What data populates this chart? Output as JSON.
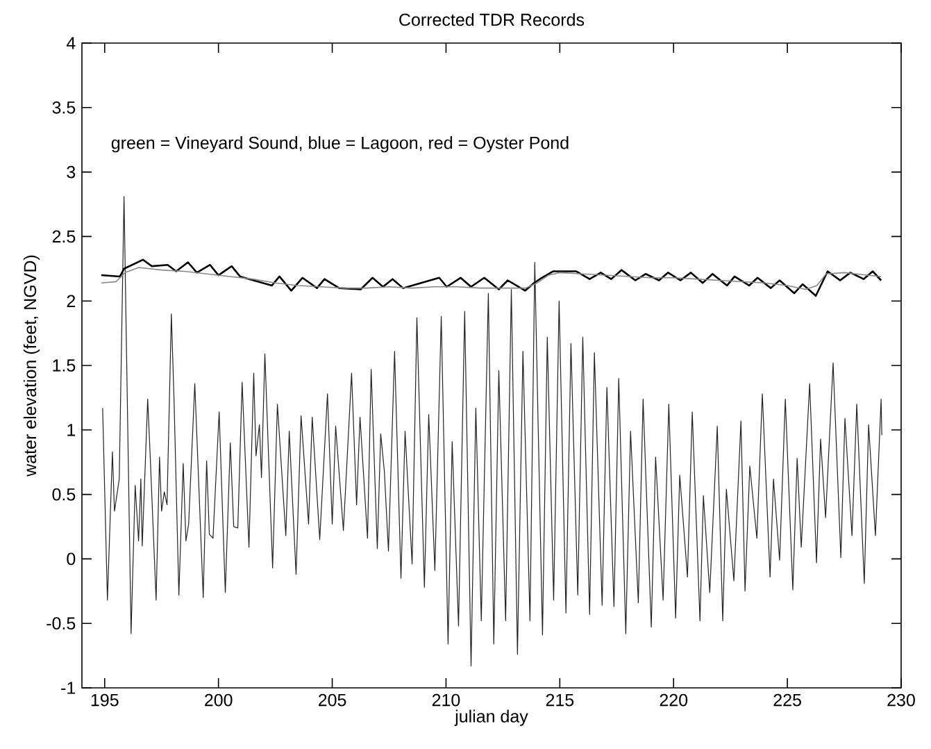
{
  "chart_data": {
    "type": "line",
    "title": "Corrected TDR Records",
    "xlabel": "julian day",
    "ylabel": "water elevation (feet, NGVD)",
    "annotations": [
      "green = Vineyard Sound, blue = Lagoon, red = Oyster Pond"
    ],
    "xlim": [
      194,
      230
    ],
    "xticks": [
      195,
      200,
      205,
      210,
      215,
      220,
      225,
      230
    ],
    "ylim": [
      -1,
      4
    ],
    "yticks": [
      -1,
      -0.5,
      0,
      0.5,
      1,
      1.5,
      2,
      2.5,
      3,
      3.5,
      4
    ],
    "grid": false,
    "marker": "none",
    "line_style": "solid",
    "series": [
      {
        "color": "#222222",
        "x": [
          194.91,
          195.12,
          195.34,
          195.43,
          195.64,
          195.85,
          196.16,
          196.34,
          196.49,
          196.59,
          196.65,
          196.89,
          197.0,
          197.26,
          197.41,
          197.5,
          197.62,
          197.74,
          197.93,
          198.05,
          198.26,
          198.45,
          198.57,
          198.69,
          198.96,
          199.33,
          199.48,
          199.6,
          199.76,
          200.03,
          200.3,
          200.52,
          200.67,
          200.85,
          201.04,
          201.34,
          201.55,
          201.65,
          201.8,
          201.89,
          202.04,
          202.38,
          202.59,
          202.96,
          203.11,
          203.41,
          203.63,
          203.96,
          204.12,
          204.45,
          204.79,
          205.0,
          205.15,
          205.49,
          205.85,
          206.07,
          206.22,
          206.55,
          206.71,
          206.98,
          207.13,
          207.29,
          207.47,
          207.74,
          208.02,
          208.2,
          208.51,
          208.72,
          209.05,
          209.24,
          209.51,
          209.79,
          210.09,
          210.27,
          210.55,
          210.82,
          211.1,
          211.31,
          211.55,
          211.86,
          212.1,
          212.32,
          212.62,
          212.87,
          213.14,
          213.38,
          213.69,
          213.9,
          214.24,
          214.45,
          214.73,
          214.97,
          215.27,
          215.49,
          215.79,
          216.01,
          216.31,
          216.52,
          216.86,
          217.07,
          217.38,
          217.59,
          217.9,
          218.11,
          218.45,
          218.66,
          219.02,
          219.21,
          219.54,
          219.79,
          220.09,
          220.27,
          220.61,
          220.82,
          221.16,
          221.31,
          221.59,
          221.92,
          222.16,
          222.32,
          222.65,
          222.96,
          223.14,
          223.35,
          223.66,
          223.9,
          224.24,
          224.39,
          224.66,
          224.91,
          225.24,
          225.43,
          225.61,
          225.98,
          226.28,
          226.46,
          226.68,
          227.01,
          227.35,
          227.53,
          227.84,
          228.05,
          228.38,
          228.57,
          228.87,
          229.12,
          229.15
        ],
        "values": [
          1.17,
          -0.32,
          0.83,
          0.37,
          0.62,
          2.81,
          -0.58,
          0.57,
          0.14,
          0.62,
          0.1,
          1.24,
          0.8,
          -0.32,
          0.79,
          0.37,
          0.52,
          0.42,
          1.9,
          1.22,
          -0.28,
          0.74,
          0.14,
          0.27,
          1.36,
          -0.3,
          0.76,
          0.19,
          0.16,
          1.14,
          -0.26,
          0.9,
          0.25,
          0.24,
          1.37,
          0.09,
          1.44,
          0.8,
          1.04,
          0.63,
          1.59,
          -0.07,
          1.2,
          0.18,
          0.99,
          -0.12,
          1.11,
          0.27,
          1.1,
          0.15,
          1.28,
          0.27,
          1.03,
          0.22,
          1.44,
          0.42,
          1.1,
          0.16,
          1.47,
          0.08,
          0.97,
          0.68,
          0.06,
          1.61,
          -0.15,
          0.99,
          -0.04,
          1.87,
          -0.22,
          1.12,
          -0.09,
          1.88,
          -0.66,
          0.91,
          -0.52,
          1.92,
          -0.83,
          1.17,
          -0.48,
          2.06,
          -0.66,
          1.46,
          -0.48,
          2.09,
          -0.74,
          1.61,
          -0.48,
          2.3,
          -0.59,
          1.72,
          -0.32,
          2.0,
          -0.42,
          1.67,
          -0.28,
          1.72,
          -0.43,
          1.6,
          -0.36,
          1.33,
          -0.37,
          1.4,
          -0.58,
          0.99,
          -0.34,
          1.24,
          -0.53,
          0.79,
          -0.32,
          1.2,
          -0.46,
          0.65,
          -0.14,
          1.14,
          -0.48,
          0.49,
          -0.26,
          1.03,
          -0.48,
          0.54,
          -0.17,
          1.07,
          -0.25,
          0.72,
          0.16,
          1.28,
          -0.14,
          0.62,
          -0.01,
          1.24,
          -0.24,
          0.78,
          0.09,
          1.36,
          -0.03,
          0.93,
          0.32,
          1.52,
          0.01,
          1.09,
          0.18,
          1.2,
          -0.19,
          1.04,
          0.18,
          1.24,
          0.96
        ]
      },
      {
        "color": "#000000",
        "x": [
          194.85,
          195.67,
          195.85,
          196.68,
          197.07,
          197.77,
          198.14,
          198.66,
          199.05,
          199.63,
          200.0,
          200.58,
          200.95,
          202.35,
          202.68,
          203.2,
          203.69,
          204.33,
          204.66,
          205.3,
          206.25,
          206.77,
          207.23,
          207.65,
          208.11,
          209.7,
          210.03,
          210.64,
          211.1,
          211.68,
          212.32,
          212.71,
          213.48,
          213.87,
          214.21,
          214.7,
          215.73,
          216.31,
          216.8,
          217.26,
          217.71,
          218.32,
          218.78,
          219.36,
          219.76,
          220.3,
          220.76,
          221.28,
          221.71,
          222.35,
          222.68,
          223.32,
          223.69,
          224.27,
          224.66,
          225.3,
          225.67,
          226.25,
          226.77,
          227.32,
          227.77,
          228.35,
          228.75,
          229.12
        ],
        "values": [
          2.2,
          2.19,
          2.25,
          2.32,
          2.27,
          2.28,
          2.23,
          2.3,
          2.22,
          2.28,
          2.2,
          2.27,
          2.19,
          2.12,
          2.19,
          2.08,
          2.18,
          2.1,
          2.17,
          2.1,
          2.09,
          2.18,
          2.11,
          2.17,
          2.1,
          2.18,
          2.11,
          2.18,
          2.11,
          2.18,
          2.09,
          2.16,
          2.08,
          2.14,
          2.18,
          2.23,
          2.23,
          2.17,
          2.22,
          2.17,
          2.24,
          2.16,
          2.21,
          2.16,
          2.22,
          2.16,
          2.22,
          2.14,
          2.21,
          2.12,
          2.19,
          2.12,
          2.18,
          2.1,
          2.16,
          2.06,
          2.13,
          2.04,
          2.23,
          2.16,
          2.22,
          2.17,
          2.23,
          2.16
        ]
      },
      {
        "color": "#888888",
        "x": [
          194.85,
          195.5,
          195.9,
          196.5,
          197.5,
          198.5,
          199.5,
          200.5,
          201.5,
          202.5,
          203.5,
          204.5,
          205.5,
          206.5,
          207.5,
          208.5,
          209.5,
          210.5,
          211.5,
          212.5,
          213.5,
          214.0,
          214.5,
          215.0,
          216.0,
          217.0,
          218.0,
          219.0,
          220.0,
          221.0,
          222.0,
          223.0,
          224.0,
          225.0,
          225.8,
          226.3,
          226.7,
          227.5,
          228.5,
          229.12
        ],
        "values": [
          2.14,
          2.15,
          2.22,
          2.26,
          2.24,
          2.23,
          2.21,
          2.19,
          2.17,
          2.14,
          2.12,
          2.11,
          2.1,
          2.1,
          2.11,
          2.1,
          2.11,
          2.11,
          2.1,
          2.1,
          2.1,
          2.14,
          2.2,
          2.22,
          2.21,
          2.2,
          2.19,
          2.18,
          2.18,
          2.17,
          2.16,
          2.15,
          2.14,
          2.12,
          2.09,
          2.12,
          2.21,
          2.22,
          2.2,
          2.19
        ]
      }
    ]
  }
}
